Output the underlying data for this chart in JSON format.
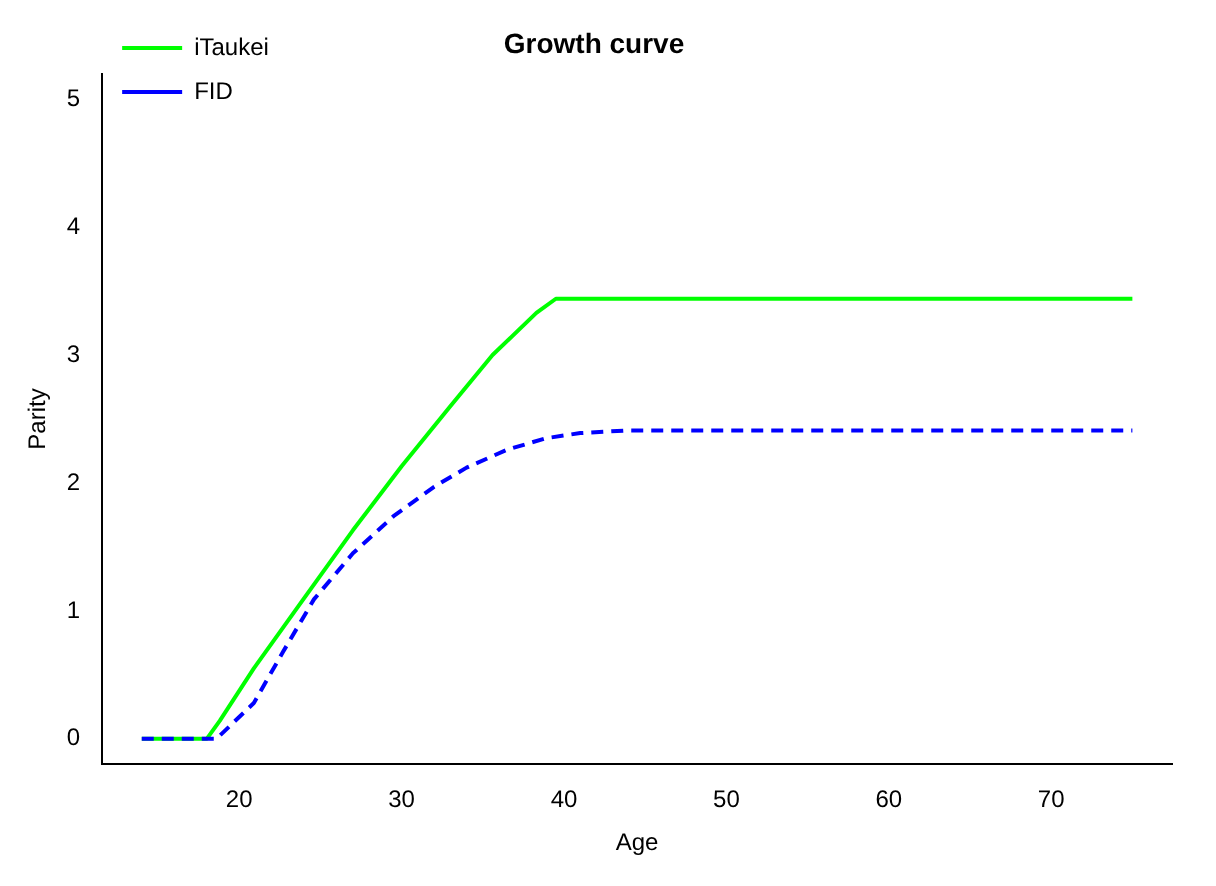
{
  "chart_data": {
    "type": "line",
    "title": "Growth curve",
    "xlabel": "Age",
    "ylabel": "Parity",
    "xlim": [
      11.56,
      77.44
    ],
    "ylim": [
      -0.2,
      5.2
    ],
    "xticks": [
      20,
      30,
      40,
      50,
      60,
      70
    ],
    "yticks": [
      0,
      1,
      2,
      3,
      4,
      5
    ],
    "grid": false,
    "legend": "top left",
    "series": [
      {
        "name": "iTaukei",
        "color": "#00ff00",
        "line_style": "solid",
        "x": [
          14,
          18,
          18.8,
          20.9,
          24,
          27,
          30,
          33,
          35.6,
          38.3,
          39.5,
          50,
          60,
          75
        ],
        "values": [
          0,
          0,
          0.14,
          0.55,
          1.1,
          1.63,
          2.13,
          2.6,
          3.0,
          3.33,
          3.44,
          3.44,
          3.44,
          3.44
        ]
      },
      {
        "name": "FID",
        "color": "#0000ff",
        "line_style": "dashed",
        "x": [
          14,
          18.6,
          20.9,
          22.7,
          24.6,
          27,
          29.5,
          32,
          34,
          36.5,
          38.9,
          41,
          43.8,
          50,
          60,
          75
        ],
        "values": [
          0,
          0,
          0.28,
          0.68,
          1.09,
          1.45,
          1.74,
          1.97,
          2.12,
          2.26,
          2.35,
          2.39,
          2.41,
          2.41,
          2.41,
          2.41
        ]
      }
    ]
  }
}
